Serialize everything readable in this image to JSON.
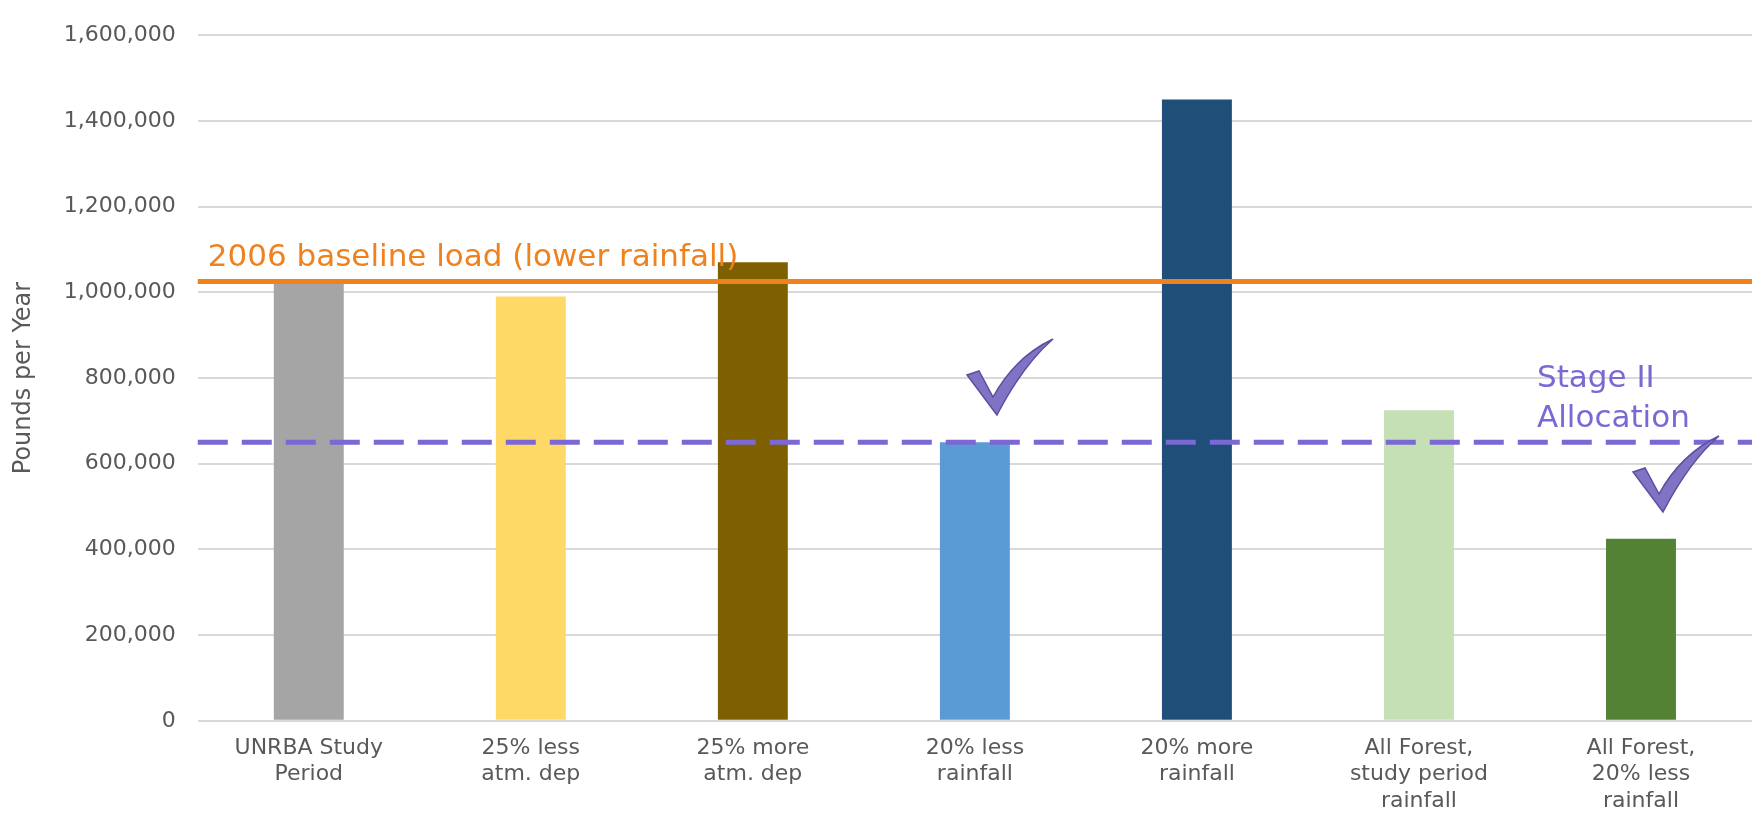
{
  "chart_data": {
    "type": "bar",
    "ylabel": "Pounds per Year",
    "categories": [
      "UNRBA Study Period",
      "25% less atm. dep",
      "25% more atm. dep",
      "20% less rainfall",
      "20% more rainfall",
      "All Forest, study period rainfall",
      "All Forest, 20% less rainfall"
    ],
    "values": [
      1020000,
      990000,
      1070000,
      650000,
      1450000,
      725000,
      425000
    ],
    "colors": [
      "#a5a5a5",
      "#ffd966",
      "#7f6000",
      "#5b9bd5",
      "#1f4e79",
      "#c5e0b4",
      "#548235"
    ],
    "ylim": [
      0,
      1600000
    ],
    "yticks": [
      0,
      {
        "value": 200000,
        "label": "200,000"
      },
      {
        "value": 400000,
        "label": "400,000"
      },
      {
        "value": 600000,
        "label": "600,000"
      },
      {
        "value": 800000,
        "label": "800,000"
      },
      {
        "value": 1000000,
        "label": "1,000,000"
      },
      {
        "value": 1200000,
        "label": "1,200,000"
      },
      {
        "value": 1400000,
        "label": "1,400,000"
      },
      {
        "value": 1600000,
        "label": "1,600,000"
      }
    ],
    "grid": "y",
    "legend": false,
    "ref_lines": [
      {
        "axis": "y",
        "value": 1025000,
        "label": "2006 baseline load (lower rainfall)",
        "color": "#f0821e",
        "line_style": "solid"
      },
      {
        "axis": "y",
        "value": 650000,
        "label": "Stage II Allocation",
        "color": "#7b68d4",
        "line_style": "dashed"
      }
    ]
  }
}
